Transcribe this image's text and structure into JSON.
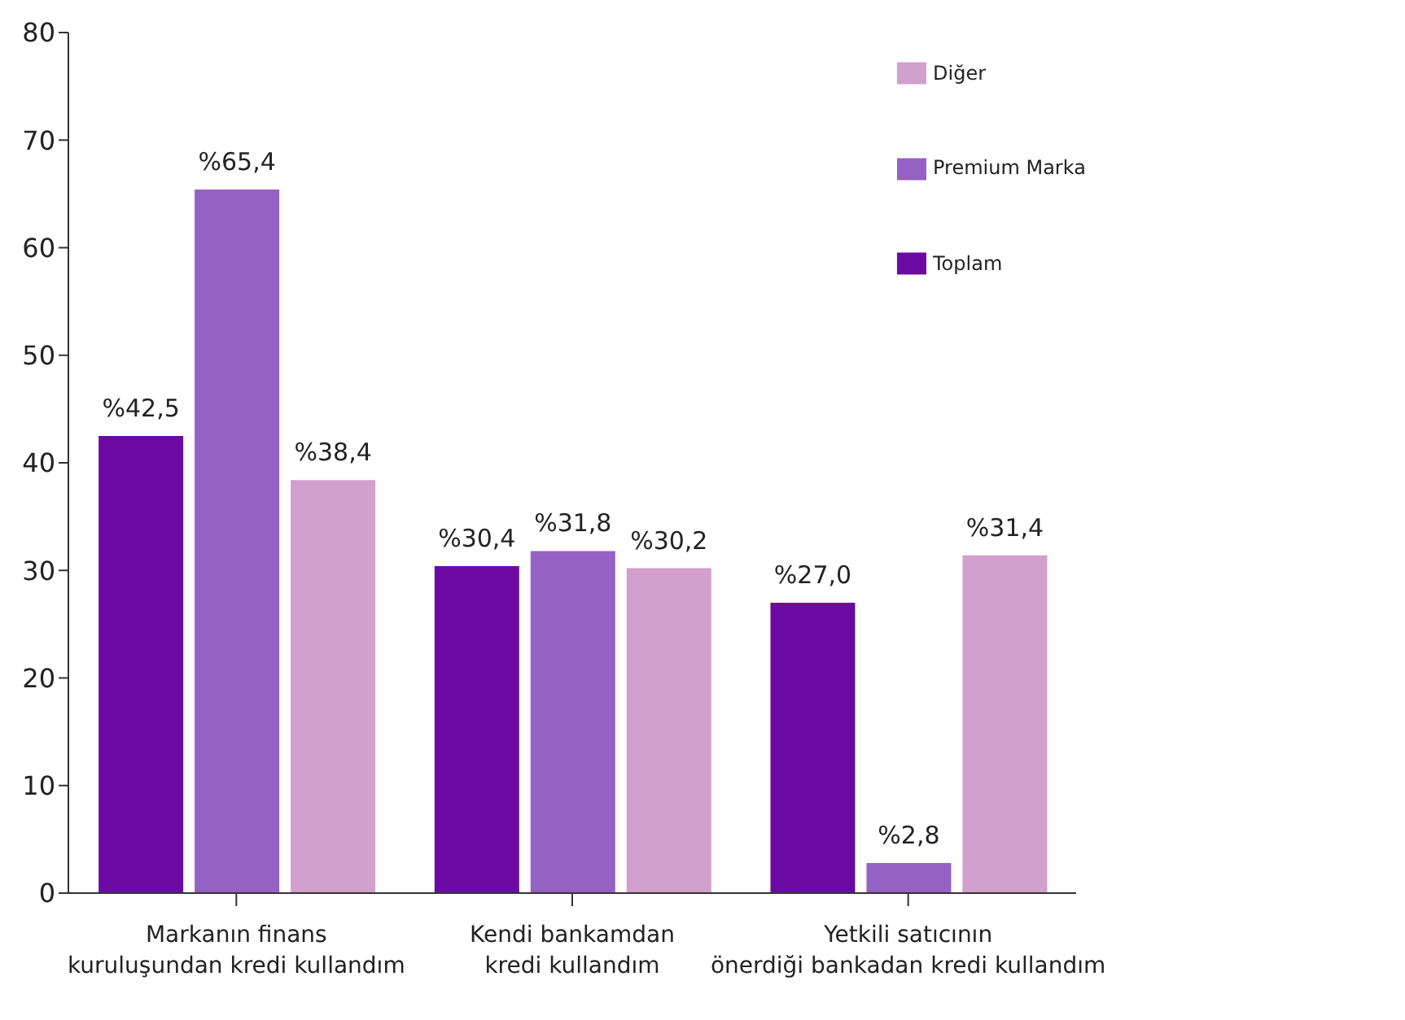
{
  "chart_data": {
    "type": "bar",
    "categories": [
      "Markanın finans\nkuruluşundan kredi kullandım",
      "Kendi bankamdan\nkredi kullandım",
      "Yetkili satıcının\nönerdiği bankadan kredi kullandım"
    ],
    "series": [
      {
        "name": "Toplam",
        "color": "#6a0aa3",
        "values": [
          42.5,
          30.4,
          27.0
        ],
        "value_labels": [
          "%42,5",
          "%30,4",
          "%27,0"
        ]
      },
      {
        "name": "Premium Marka",
        "color": "#9661c4",
        "values": [
          65.4,
          31.8,
          2.8
        ],
        "value_labels": [
          "%65,4",
          "%31,8",
          "%2,8"
        ]
      },
      {
        "name": "Diğer",
        "color": "#d1a0cc",
        "values": [
          38.4,
          30.2,
          31.4
        ],
        "value_labels": [
          "%38,4",
          "%30,2",
          "%31,4"
        ]
      }
    ],
    "ylim": [
      0,
      80
    ],
    "yticks": [
      0,
      10,
      20,
      30,
      40,
      50,
      60,
      70,
      80
    ],
    "grid": false,
    "legend": "top right"
  }
}
